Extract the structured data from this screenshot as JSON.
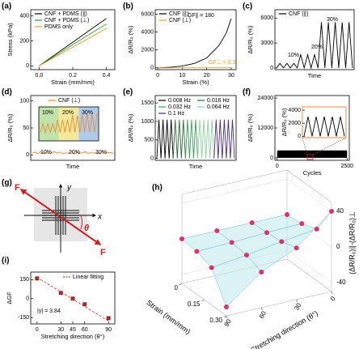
{
  "chart_data": [
    {
      "type": "line",
      "label": "(a)",
      "xlabel": "Strain (mm/mm)",
      "ylabel": "Stress (kPa)",
      "x": [
        0,
        0.1,
        0.2,
        0.3,
        0.4
      ],
      "xlim": [
        -0.05,
        0.45
      ],
      "xticks": [
        {
          "value": 0,
          "label": "0.0"
        },
        {
          "value": 0.2,
          "label": "0.2"
        },
        {
          "value": 0.4,
          "label": "0.4"
        }
      ],
      "ylim": [
        -30,
        450
      ],
      "yticks": [
        0,
        200,
        400
      ],
      "series": [
        {
          "name": "CNF + PDMS (∥)",
          "color": "#000000",
          "values": [
            0,
            95,
            190,
            285,
            380
          ]
        },
        {
          "name": "CNF + PDMS (⊥)",
          "color": "#2e9e3a",
          "values": [
            0,
            85,
            170,
            255,
            335
          ]
        },
        {
          "name": "PDMS only",
          "color": "#f0a030",
          "values": [
            0,
            75,
            150,
            225,
            300
          ]
        }
      ]
    },
    {
      "type": "line",
      "label": "(b)",
      "xlabel": "Strain (%)",
      "ylabel": "ΔR/R₀ (%)",
      "x": [
        0,
        5,
        10,
        15,
        20,
        25,
        28,
        30
      ],
      "xlim": [
        -1,
        32
      ],
      "xticks": [
        0,
        10,
        20,
        30
      ],
      "ylim": [
        -200,
        6500
      ],
      "yticks": [
        0,
        2000,
        4000,
        6000
      ],
      "series": [
        {
          "name": "CNF (∥)",
          "color": "#000000",
          "values": [
            0,
            60,
            200,
            500,
            1100,
            2500,
            3900,
            5500
          ]
        },
        {
          "name": "CNF (⊥)",
          "color": "#f0a030",
          "values": [
            0,
            2,
            3,
            5,
            6,
            8,
            9,
            9
          ]
        }
      ],
      "annotations": [
        "GF∥ = 180",
        "GF⊥ = 0.3"
      ]
    },
    {
      "type": "line",
      "label": "(c)",
      "xlabel": "Time",
      "ylabel": "ΔR/R₀ (%)",
      "ylim": [
        -200,
        7000
      ],
      "yticks": [
        0,
        3000,
        6000
      ],
      "series": [
        {
          "name": "CNF (∥)",
          "color": "#000000",
          "values": [
            0,
            550,
            0,
            550,
            0,
            550,
            0,
            1600,
            0,
            1600,
            0,
            1600,
            0,
            5500,
            0,
            5500,
            0,
            5500,
            0,
            5500,
            0,
            5500,
            0
          ]
        }
      ],
      "annotations": [
        "10%",
        "20%",
        "30%"
      ]
    },
    {
      "type": "line",
      "label": "(d)",
      "xlabel": "Time",
      "ylabel": "ΔR/R₀ (%)",
      "ylim": [
        -10,
        110
      ],
      "yticks": [
        0,
        50,
        100
      ],
      "series": [
        {
          "name": "CNF (⊥)",
          "color": "#f08c30",
          "values": [
            3,
            5,
            2,
            6,
            3,
            5,
            2,
            4,
            6,
            3,
            5,
            2,
            4,
            3,
            6,
            2,
            5,
            3,
            4,
            6,
            2,
            5,
            3,
            4,
            2,
            6,
            3,
            5,
            4,
            3
          ]
        }
      ],
      "annotations": [
        "10%",
        "20%",
        "30%"
      ],
      "inset": {
        "ylim": [
          0,
          8
        ],
        "color": "#f08c30",
        "values": [
          2,
          4,
          2,
          4,
          2,
          4,
          2,
          5,
          2,
          5,
          2,
          5,
          2,
          6,
          2,
          6,
          2,
          6,
          2,
          6.5,
          2,
          6.5,
          2,
          6.5
        ],
        "annotations": [
          "10%",
          "20%",
          "30%"
        ]
      }
    },
    {
      "type": "line",
      "label": "(e)",
      "xlabel": "Time",
      "ylabel": "ΔR/R₀ (%)",
      "ylim": [
        -50,
        1700
      ],
      "yticks": [
        0,
        500,
        1000,
        1500
      ],
      "series": [
        {
          "name": "0.008 Hz",
          "color": "#000000",
          "values": [
            0,
            1050,
            0,
            1050,
            0,
            1050,
            0,
            1050,
            0,
            null,
            null,
            null,
            null,
            null,
            null,
            null,
            null,
            null,
            null,
            null,
            null,
            null,
            null,
            null,
            null,
            null,
            null,
            null,
            null,
            null,
            null,
            null,
            null,
            null,
            null,
            null,
            null,
            null,
            null
          ]
        },
        {
          "name": "0.016 Hz",
          "color": "#2f6b3a",
          "values": [
            null,
            null,
            null,
            null,
            null,
            null,
            null,
            null,
            0,
            1050,
            0,
            1050,
            0,
            1050,
            0,
            null,
            null,
            null,
            null,
            null,
            null,
            null,
            null,
            null,
            null,
            null,
            null,
            null,
            null,
            null,
            null,
            null,
            null,
            null,
            null,
            null,
            null,
            null,
            null
          ]
        },
        {
          "name": "0.032 Hz",
          "color": "#3aa05a",
          "values": [
            null,
            null,
            null,
            null,
            null,
            null,
            null,
            null,
            null,
            null,
            null,
            null,
            null,
            null,
            0,
            1050,
            0,
            1050,
            0,
            1050,
            0,
            null,
            null,
            null,
            null,
            null,
            null,
            null,
            null,
            null,
            null,
            null,
            null,
            null,
            null,
            null,
            null,
            null,
            null
          ]
        },
        {
          "name": "0.064 Hz",
          "color": "#8fd0a0",
          "values": [
            null,
            null,
            null,
            null,
            null,
            null,
            null,
            null,
            null,
            null,
            null,
            null,
            null,
            null,
            null,
            null,
            null,
            null,
            null,
            null,
            0,
            1050,
            0,
            1050,
            0,
            1050,
            0,
            1050,
            0,
            null,
            null,
            null,
            null,
            null,
            null,
            null,
            null,
            null,
            null
          ]
        },
        {
          "name": "0.1 Hz",
          "color": "#4b2a8a",
          "values": [
            null,
            null,
            null,
            null,
            null,
            null,
            null,
            null,
            null,
            null,
            null,
            null,
            null,
            null,
            null,
            null,
            null,
            null,
            null,
            null,
            null,
            null,
            null,
            null,
            null,
            null,
            null,
            null,
            0,
            1050,
            0,
            1050,
            0,
            1050,
            0,
            1050,
            0,
            1050,
            0
          ]
        }
      ]
    },
    {
      "type": "area",
      "label": "(f)",
      "xlabel": "Cycles",
      "ylabel": "ΔR/R₀ (%)",
      "x": [
        0,
        2500
      ],
      "xlim": [
        -80,
        2580
      ],
      "xticks": [
        0,
        2500
      ],
      "ylim": [
        -1000,
        25000
      ],
      "yticks": [
        0,
        12000,
        24000
      ],
      "series": [
        {
          "color": "#000000",
          "values": [
            3000,
            3000
          ]
        }
      ],
      "inset": {
        "ylabel": "ΔR/R₀ (%)",
        "ylim": [
          -200,
          4500
        ],
        "yticks": [
          0,
          2000,
          4000
        ],
        "color": "#000000",
        "values": [
          0,
          3000,
          0,
          3000,
          0,
          3000,
          0,
          3000,
          0,
          3000,
          0
        ]
      }
    },
    {
      "type": "surface3d",
      "label": "(h)",
      "xlabel": "Strain (mm/mm)",
      "ylabel": "Stretching direction (θ°)",
      "zlabel": "(ΔR/R₀)∥-(ΔR/R₀)⊥",
      "x": [
        0,
        0.1,
        0.2,
        0.3
      ],
      "y": [
        0,
        30,
        60,
        90
      ],
      "z": [
        [
          0,
          0,
          0,
          0
        ],
        [
          2,
          1,
          -1,
          -2
        ],
        [
          8,
          3,
          -3,
          -8
        ],
        [
          40,
          8,
          -10,
          -40
        ]
      ],
      "xlim": [
        0,
        0.3
      ],
      "xticks": [
        0,
        0.15,
        {
          "value": 0.3,
          "label": "0.30"
        }
      ],
      "ylim": [
        0,
        90
      ],
      "yticks": [
        0,
        30,
        60,
        90
      ],
      "zlim": [
        -50,
        50
      ],
      "zticks": [
        -40,
        0,
        40
      ],
      "color": "#e0306a"
    },
    {
      "type": "scatter",
      "label": "(i)",
      "xlabel": "Stretching direction (θ°)",
      "ylabel": "ΔGF",
      "x": [
        0,
        30,
        45,
        60,
        90
      ],
      "values": [
        160,
        45,
        0,
        -45,
        -155
      ],
      "color": "#a0282a",
      "xlim": [
        -8,
        98
      ],
      "xticks": [
        0,
        30,
        45,
        60,
        90
      ],
      "ylim": [
        -200,
        210
      ],
      "yticks": [
        -150,
        0,
        150
      ],
      "fit": {
        "name": "Linear fitting",
        "color": "#d04030",
        "x": [
          0,
          90
        ],
        "values": [
          168,
          -177
        ]
      },
      "annotations": [
        "|γ| = 3.84"
      ]
    }
  ],
  "diagram": {
    "label": "(g)",
    "labels": [
      "F",
      "y",
      "x",
      "θ",
      "F"
    ]
  }
}
